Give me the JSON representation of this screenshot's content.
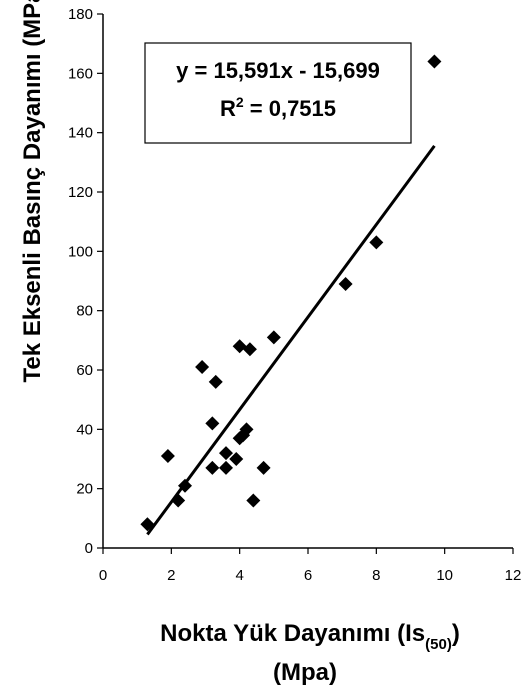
{
  "chart_data": {
    "type": "scatter",
    "xlabel": "Nokta Yük Dayanımı (Is",
    "xlabel_sub": "(50)",
    "xlabel_close": ")",
    "xlabel_line2": "(Mpa)",
    "ylabel": "Tek Eksenli Basınç Dayanımı (MPa)",
    "xlim": [
      0,
      12
    ],
    "ylim": [
      0,
      180
    ],
    "x_ticks": [
      "0",
      "2",
      "4",
      "6",
      "8",
      "10",
      "12"
    ],
    "y_ticks": [
      "0",
      "20",
      "40",
      "60",
      "80",
      "100",
      "120",
      "140",
      "160",
      "180"
    ],
    "grid": false,
    "marker": "diamond",
    "marker_color": "#000000",
    "series": [
      {
        "points": [
          [
            1.3,
            8
          ],
          [
            2.2,
            16
          ],
          [
            2.4,
            21
          ],
          [
            1.9,
            31
          ],
          [
            3.2,
            27
          ],
          [
            3.6,
            27
          ],
          [
            3.2,
            42
          ],
          [
            3.3,
            56
          ],
          [
            2.9,
            61
          ],
          [
            3.6,
            32
          ],
          [
            3.9,
            30
          ],
          [
            4.0,
            37
          ],
          [
            4.1,
            38
          ],
          [
            4.2,
            40
          ],
          [
            4.4,
            16
          ],
          [
            4.7,
            27
          ],
          [
            4.0,
            68
          ],
          [
            4.3,
            67
          ],
          [
            5.0,
            71
          ],
          [
            7.1,
            89
          ],
          [
            8.0,
            103
          ],
          [
            9.7,
            164
          ]
        ]
      }
    ],
    "trendline": {
      "slope": 15.591,
      "intercept": -15.699,
      "x_range": [
        1.3,
        9.7
      ],
      "equation_label": "y = 15,591x - 15,699",
      "r2_prefix": "R",
      "r2_sup": "2",
      "r2_value": " = 0,7515"
    }
  }
}
